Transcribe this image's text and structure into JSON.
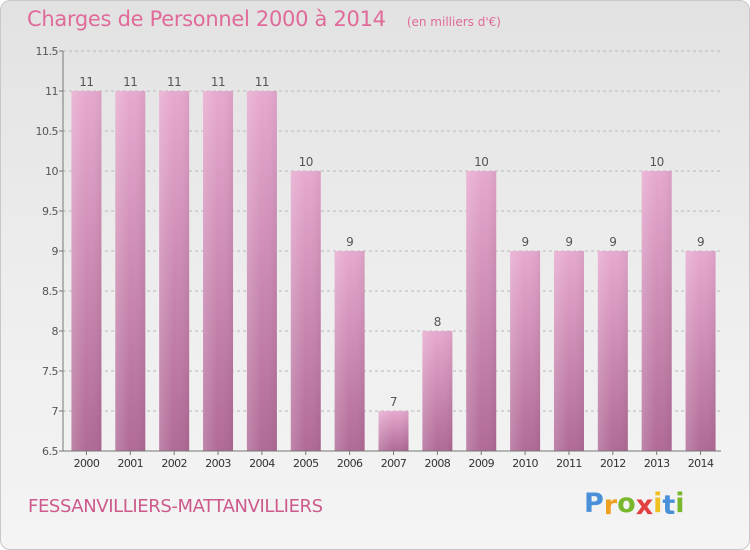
{
  "header": {
    "title": "Charges de Personnel 2000 à 2014",
    "subtitle": "(en milliers d'€)"
  },
  "footer": {
    "town": "FESSANVILLIERS-MATTANVILLIERS",
    "logo_letters": [
      "P",
      "r",
      "o",
      "x",
      "i",
      "t",
      "i"
    ]
  },
  "colors": {
    "accent": "#e06a9a",
    "bar_top": "#e7a9cf",
    "bar_bottom": "#b06a96",
    "logo": [
      "#4a90d9",
      "#f0a020",
      "#79b82d",
      "#e04040",
      "#f0c020",
      "#4a90d9",
      "#79b82d"
    ]
  },
  "chart_data": {
    "type": "bar",
    "title": "Charges de Personnel 2000 à 2014",
    "subtitle": "(en milliers d'€)",
    "categories": [
      "2000",
      "2001",
      "2002",
      "2003",
      "2004",
      "2005",
      "2006",
      "2007",
      "2008",
      "2009",
      "2010",
      "2011",
      "2012",
      "2013",
      "2014"
    ],
    "values": [
      11,
      11,
      11,
      11,
      11,
      10,
      9,
      7,
      8,
      10,
      9,
      9,
      9,
      10,
      9
    ],
    "data_labels": [
      "11",
      "11",
      "11",
      "11",
      "11",
      "10",
      "9",
      "7",
      "8",
      "10",
      "9",
      "9",
      "9",
      "10",
      "9"
    ],
    "ylim": [
      6.5,
      11.5
    ],
    "yticks": [
      6.5,
      7,
      7.5,
      8,
      8.5,
      9,
      9.5,
      10,
      10.5,
      11,
      11.5
    ],
    "ytick_labels": [
      "6.5",
      "7",
      "7.5",
      "8",
      "8.5",
      "9",
      "9.5",
      "10",
      "10.5",
      "11",
      "11.5"
    ],
    "grid": "horizontal dashed"
  }
}
